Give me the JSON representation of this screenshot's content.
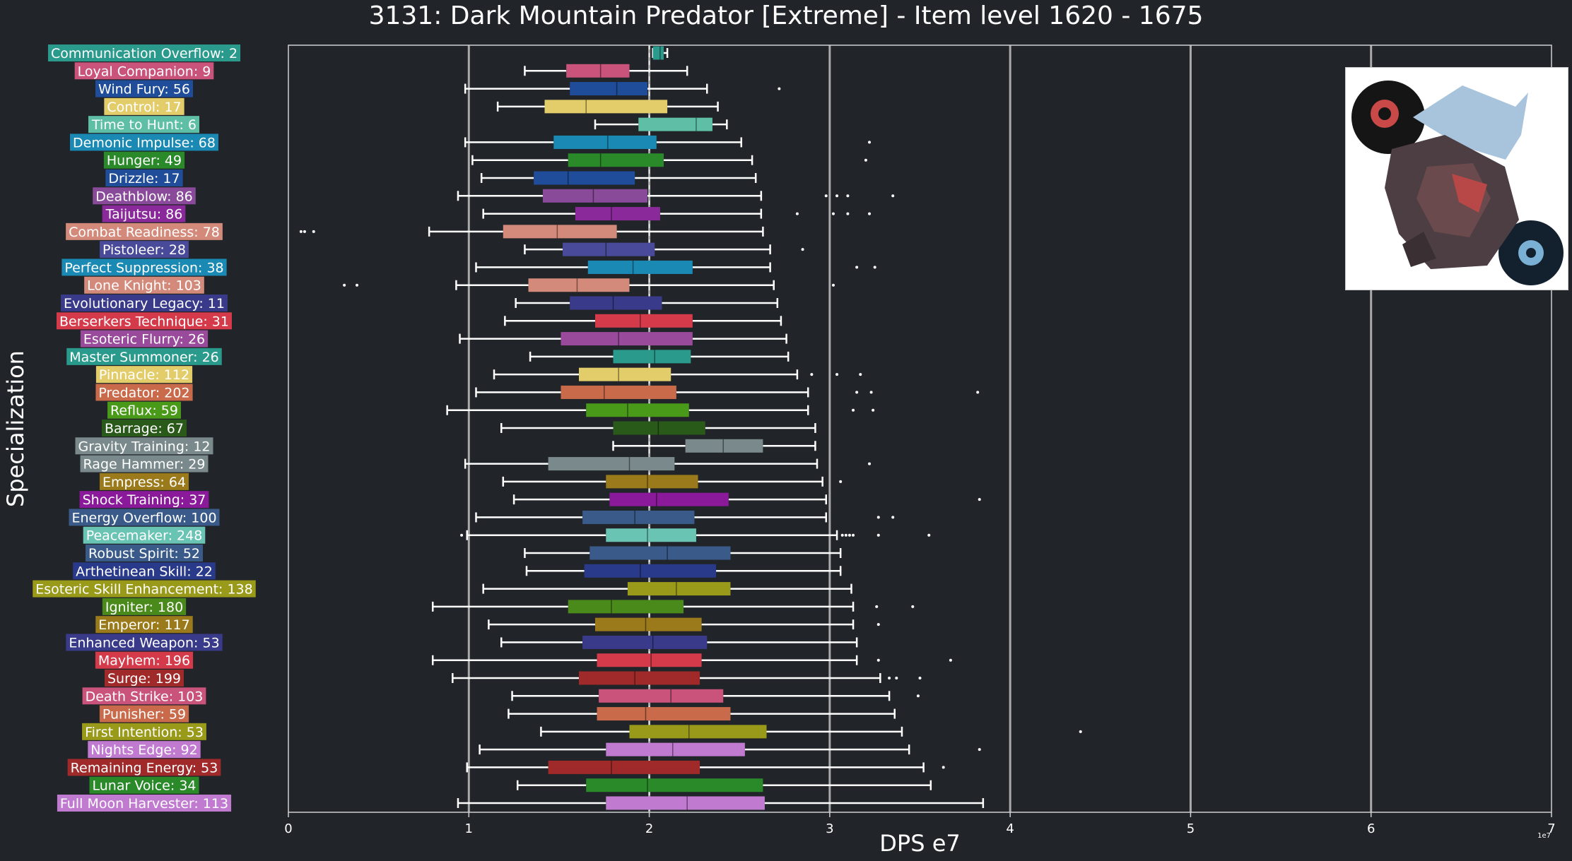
{
  "chart_data": {
    "type": "boxplot",
    "title": "3131: Dark Mountain Predator [Extreme] - Item level 1620 - 1675",
    "xlabel": "DPS e7",
    "ylabel": "Specialization",
    "x_offset_label": "1e7",
    "xlim": [
      0,
      7
    ],
    "xticks": [
      "0",
      "1",
      "2",
      "3",
      "4",
      "5",
      "6",
      "7"
    ],
    "grid": "vertical",
    "reference_line": 2.0,
    "portrait": "boss-portrait-icon",
    "series": [
      {
        "label": "Communication Overflow: 2",
        "color": "#2a9a8c",
        "min": 2.02,
        "q1": 2.02,
        "median": 2.06,
        "q3": 2.08,
        "max": 2.1,
        "outliers": []
      },
      {
        "label": "Loyal Companion: 9",
        "color": "#c9537a",
        "min": 1.31,
        "q1": 1.54,
        "median": 1.73,
        "q3": 1.89,
        "max": 2.21,
        "outliers": []
      },
      {
        "label": "Wind Fury: 56",
        "color": "#1f4d9a",
        "min": 0.98,
        "q1": 1.56,
        "median": 1.82,
        "q3": 1.99,
        "max": 2.32,
        "outliers": [
          2.72
        ]
      },
      {
        "label": "Control: 17",
        "color": "#e3cd6a",
        "min": 1.16,
        "q1": 1.42,
        "median": 1.65,
        "q3": 2.1,
        "max": 2.38,
        "outliers": []
      },
      {
        "label": "Time to Hunt: 6",
        "color": "#5fbfa6",
        "min": 1.7,
        "q1": 1.94,
        "median": 2.26,
        "q3": 2.35,
        "max": 2.43,
        "outliers": []
      },
      {
        "label": "Demonic Impulse: 68",
        "color": "#1a8ab4",
        "min": 0.98,
        "q1": 1.47,
        "median": 1.77,
        "q3": 2.04,
        "max": 2.51,
        "outliers": [
          3.22
        ]
      },
      {
        "label": "Hunger: 49",
        "color": "#2a8a2a",
        "min": 1.02,
        "q1": 1.55,
        "median": 1.73,
        "q3": 2.08,
        "max": 2.57,
        "outliers": [
          3.2
        ]
      },
      {
        "label": "Drizzle: 17",
        "color": "#1f4d9a",
        "min": 1.07,
        "q1": 1.36,
        "median": 1.55,
        "q3": 1.92,
        "max": 2.59,
        "outliers": []
      },
      {
        "label": "Deathblow: 86",
        "color": "#8a4a9a",
        "min": 0.94,
        "q1": 1.41,
        "median": 1.69,
        "q3": 1.99,
        "max": 2.62,
        "outliers": [
          2.98,
          3.04,
          3.1,
          3.35
        ]
      },
      {
        "label": "Taijutsu: 86",
        "color": "#8a2a9a",
        "min": 1.08,
        "q1": 1.59,
        "median": 1.79,
        "q3": 2.06,
        "max": 2.62,
        "outliers": [
          2.82,
          3.02,
          3.1,
          3.22
        ]
      },
      {
        "label": "Combat Readiness: 78",
        "color": "#d48a7a",
        "min": 0.78,
        "q1": 1.19,
        "median": 1.49,
        "q3": 1.82,
        "max": 2.63,
        "outliers": [
          0.07,
          0.09,
          0.14
        ]
      },
      {
        "label": "Pistoleer: 28",
        "color": "#4a4a9a",
        "min": 1.31,
        "q1": 1.52,
        "median": 1.76,
        "q3": 2.03,
        "max": 2.67,
        "outliers": [
          2.85
        ]
      },
      {
        "label": "Perfect Suppression: 38",
        "color": "#1a8ab4",
        "min": 1.04,
        "q1": 1.66,
        "median": 1.91,
        "q3": 2.24,
        "max": 2.67,
        "outliers": [
          3.15,
          3.25
        ]
      },
      {
        "label": "Lone Knight: 103",
        "color": "#d48a7a",
        "min": 0.93,
        "q1": 1.33,
        "median": 1.6,
        "q3": 1.89,
        "max": 2.69,
        "outliers": [
          0.31,
          0.38,
          3.02
        ]
      },
      {
        "label": "Evolutionary Legacy: 11",
        "color": "#3a3a8a",
        "min": 1.26,
        "q1": 1.56,
        "median": 1.8,
        "q3": 2.07,
        "max": 2.71,
        "outliers": []
      },
      {
        "label": "Berserkers Technique: 31",
        "color": "#d43a4a",
        "min": 1.2,
        "q1": 1.7,
        "median": 1.95,
        "q3": 2.24,
        "max": 2.73,
        "outliers": []
      },
      {
        "label": "Esoteric Flurry: 26",
        "color": "#9a4a9a",
        "min": 0.95,
        "q1": 1.51,
        "median": 1.83,
        "q3": 2.24,
        "max": 2.76,
        "outliers": []
      },
      {
        "label": "Master Summoner: 26",
        "color": "#2a9a8c",
        "min": 1.34,
        "q1": 1.8,
        "median": 2.03,
        "q3": 2.23,
        "max": 2.77,
        "outliers": []
      },
      {
        "label": "Pinnacle: 112",
        "color": "#e3cd6a",
        "min": 1.14,
        "q1": 1.61,
        "median": 1.83,
        "q3": 2.12,
        "max": 2.82,
        "outliers": [
          2.9,
          3.04,
          3.17
        ]
      },
      {
        "label": "Predator: 202",
        "color": "#c96a4a",
        "min": 1.04,
        "q1": 1.51,
        "median": 1.75,
        "q3": 2.15,
        "max": 2.88,
        "outliers": [
          3.15,
          3.23,
          3.82
        ]
      },
      {
        "label": "Reflux: 59",
        "color": "#4a9a1a",
        "min": 0.88,
        "q1": 1.65,
        "median": 1.88,
        "q3": 2.22,
        "max": 2.88,
        "outliers": [
          3.13,
          3.24
        ]
      },
      {
        "label": "Barrage: 67",
        "color": "#2a5a1a",
        "min": 1.18,
        "q1": 1.8,
        "median": 2.05,
        "q3": 2.31,
        "max": 2.92,
        "outliers": []
      },
      {
        "label": "Gravity Training: 12",
        "color": "#7a8a8c",
        "min": 1.8,
        "q1": 2.2,
        "median": 2.41,
        "q3": 2.63,
        "max": 2.92,
        "outliers": []
      },
      {
        "label": "Rage Hammer: 29",
        "color": "#7a8a8c",
        "min": 0.98,
        "q1": 1.44,
        "median": 1.89,
        "q3": 2.14,
        "max": 2.93,
        "outliers": [
          3.22
        ]
      },
      {
        "label": "Empress: 64",
        "color": "#9a7a1a",
        "min": 1.19,
        "q1": 1.76,
        "median": 1.99,
        "q3": 2.27,
        "max": 2.96,
        "outliers": [
          3.06
        ]
      },
      {
        "label": "Shock Training: 37",
        "color": "#8a1a9a",
        "min": 1.25,
        "q1": 1.78,
        "median": 2.04,
        "q3": 2.44,
        "max": 2.98,
        "outliers": [
          3.83
        ]
      },
      {
        "label": "Energy Overflow: 100",
        "color": "#3a5a8a",
        "min": 1.04,
        "q1": 1.63,
        "median": 1.92,
        "q3": 2.25,
        "max": 2.98,
        "outliers": [
          3.27,
          3.35
        ]
      },
      {
        "label": "Peacemaker: 248",
        "color": "#6ac4b4",
        "min": 0.99,
        "q1": 1.76,
        "median": 1.99,
        "q3": 2.26,
        "max": 3.04,
        "outliers": [
          0.96,
          3.07,
          3.09,
          3.11,
          3.13,
          3.27,
          3.55
        ]
      },
      {
        "label": "Robust Spirit: 52",
        "color": "#3a5a8a",
        "min": 1.31,
        "q1": 1.67,
        "median": 2.1,
        "q3": 2.45,
        "max": 3.06,
        "outliers": []
      },
      {
        "label": "Arthetinean Skill: 22",
        "color": "#2a3a8a",
        "min": 1.32,
        "q1": 1.64,
        "median": 1.95,
        "q3": 2.37,
        "max": 3.06,
        "outliers": []
      },
      {
        "label": "Esoteric Skill Enhancement: 138",
        "color": "#9a9a1a",
        "min": 1.08,
        "q1": 1.88,
        "median": 2.15,
        "q3": 2.45,
        "max": 3.12,
        "outliers": []
      },
      {
        "label": "Igniter: 180",
        "color": "#4a8a1a",
        "min": 0.8,
        "q1": 1.55,
        "median": 1.79,
        "q3": 2.19,
        "max": 3.13,
        "outliers": [
          3.26,
          3.46
        ]
      },
      {
        "label": "Emperor: 117",
        "color": "#9a7a1a",
        "min": 1.11,
        "q1": 1.7,
        "median": 1.98,
        "q3": 2.29,
        "max": 3.13,
        "outliers": [
          3.27
        ]
      },
      {
        "label": "Enhanced Weapon: 53",
        "color": "#3a3a8a",
        "min": 1.18,
        "q1": 1.63,
        "median": 2.02,
        "q3": 2.32,
        "max": 3.15,
        "outliers": []
      },
      {
        "label": "Mayhem: 196",
        "color": "#d43a4a",
        "min": 0.8,
        "q1": 1.71,
        "median": 2.01,
        "q3": 2.29,
        "max": 3.15,
        "outliers": [
          3.27,
          3.67
        ]
      },
      {
        "label": "Surge: 199",
        "color": "#a02a2a",
        "min": 0.91,
        "q1": 1.61,
        "median": 1.92,
        "q3": 2.28,
        "max": 3.28,
        "outliers": [
          3.33,
          3.37,
          3.5
        ]
      },
      {
        "label": "Death Strike: 103",
        "color": "#c9537a",
        "min": 1.24,
        "q1": 1.72,
        "median": 2.12,
        "q3": 2.41,
        "max": 3.33,
        "outliers": [
          3.49
        ]
      },
      {
        "label": "Punisher: 59",
        "color": "#c96a4a",
        "min": 1.22,
        "q1": 1.71,
        "median": 1.98,
        "q3": 2.45,
        "max": 3.36,
        "outliers": []
      },
      {
        "label": "First Intention: 53",
        "color": "#9a9a1a",
        "min": 1.4,
        "q1": 1.89,
        "median": 2.22,
        "q3": 2.65,
        "max": 3.4,
        "outliers": [
          4.39
        ]
      },
      {
        "label": "Nights Edge: 92",
        "color": "#c07ad0",
        "min": 1.06,
        "q1": 1.76,
        "median": 2.13,
        "q3": 2.53,
        "max": 3.44,
        "outliers": [
          3.83
        ]
      },
      {
        "label": "Remaining Energy: 53",
        "color": "#a02a2a",
        "min": 0.99,
        "q1": 1.44,
        "median": 1.79,
        "q3": 2.28,
        "max": 3.52,
        "outliers": [
          3.63
        ]
      },
      {
        "label": "Lunar Voice: 34",
        "color": "#2a8a2a",
        "min": 1.27,
        "q1": 1.65,
        "median": 1.99,
        "q3": 2.63,
        "max": 3.56,
        "outliers": []
      },
      {
        "label": "Full Moon Harvester: 113",
        "color": "#c07ad0",
        "min": 0.94,
        "q1": 1.76,
        "median": 2.21,
        "q3": 2.64,
        "max": 3.85,
        "outliers": []
      }
    ]
  }
}
